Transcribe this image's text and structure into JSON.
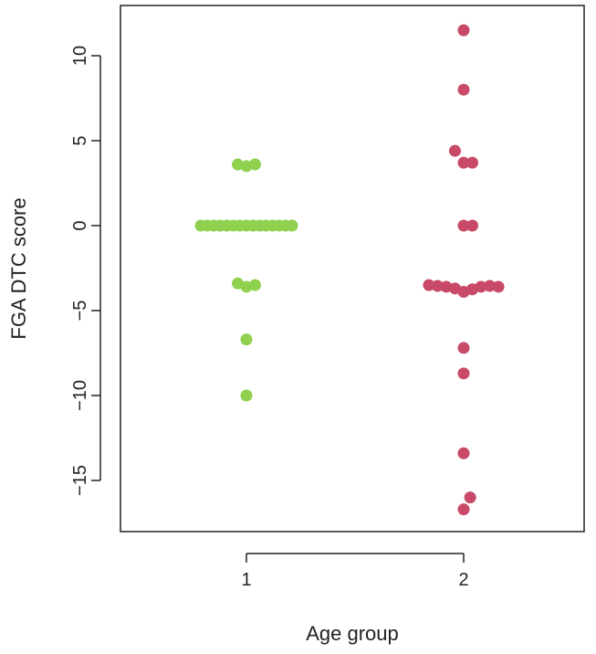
{
  "chart_data": {
    "type": "scatter",
    "title": "",
    "xlabel": "Age group",
    "ylabel": "FGA DTC score",
    "categories": [
      "1",
      "2"
    ],
    "xlim": [
      0.5,
      2.5
    ],
    "ylim": [
      -18.0,
      12.5
    ],
    "yticks": [
      10,
      5,
      0,
      -5,
      -10,
      -15
    ],
    "ytick_labels": [
      "10",
      "5",
      "0",
      "−5",
      "−10",
      "−15"
    ],
    "grid": false,
    "legend": "none",
    "colors": {
      "group1": "#8fd14f",
      "group2": "#c84a68",
      "axis": "#222222"
    },
    "series": [
      {
        "category": "1",
        "color": "#8fd14f",
        "points": [
          {
            "x": 0.96,
            "y": 3.6
          },
          {
            "x": 1.0,
            "y": 3.5
          },
          {
            "x": 1.04,
            "y": 3.6
          },
          {
            "x": 0.79,
            "y": 0
          },
          {
            "x": 0.82,
            "y": 0
          },
          {
            "x": 0.85,
            "y": 0
          },
          {
            "x": 0.88,
            "y": 0
          },
          {
            "x": 0.91,
            "y": 0
          },
          {
            "x": 0.94,
            "y": 0
          },
          {
            "x": 0.97,
            "y": 0
          },
          {
            "x": 1.0,
            "y": 0
          },
          {
            "x": 1.03,
            "y": 0
          },
          {
            "x": 1.06,
            "y": 0
          },
          {
            "x": 1.09,
            "y": 0
          },
          {
            "x": 1.12,
            "y": 0
          },
          {
            "x": 1.15,
            "y": 0
          },
          {
            "x": 1.18,
            "y": 0
          },
          {
            "x": 1.21,
            "y": 0
          },
          {
            "x": 0.96,
            "y": -3.4
          },
          {
            "x": 1.0,
            "y": -3.6
          },
          {
            "x": 1.04,
            "y": -3.5
          },
          {
            "x": 1.0,
            "y": -6.7
          },
          {
            "x": 1.0,
            "y": -10.0
          }
        ]
      },
      {
        "category": "2",
        "color": "#c84a68",
        "points": [
          {
            "x": 2.0,
            "y": 11.5
          },
          {
            "x": 2.0,
            "y": 8.0
          },
          {
            "x": 1.96,
            "y": 4.4
          },
          {
            "x": 2.0,
            "y": 3.7
          },
          {
            "x": 2.04,
            "y": 3.7
          },
          {
            "x": 2.0,
            "y": 0
          },
          {
            "x": 2.04,
            "y": 0
          },
          {
            "x": 1.84,
            "y": -3.5
          },
          {
            "x": 1.88,
            "y": -3.55
          },
          {
            "x": 1.92,
            "y": -3.6
          },
          {
            "x": 1.96,
            "y": -3.7
          },
          {
            "x": 2.0,
            "y": -3.9
          },
          {
            "x": 2.04,
            "y": -3.75
          },
          {
            "x": 2.08,
            "y": -3.6
          },
          {
            "x": 2.12,
            "y": -3.55
          },
          {
            "x": 2.16,
            "y": -3.6
          },
          {
            "x": 2.0,
            "y": -7.2
          },
          {
            "x": 2.0,
            "y": -8.7
          },
          {
            "x": 2.0,
            "y": -13.4
          },
          {
            "x": 2.03,
            "y": -16.0
          },
          {
            "x": 2.0,
            "y": -16.7
          }
        ]
      }
    ]
  }
}
